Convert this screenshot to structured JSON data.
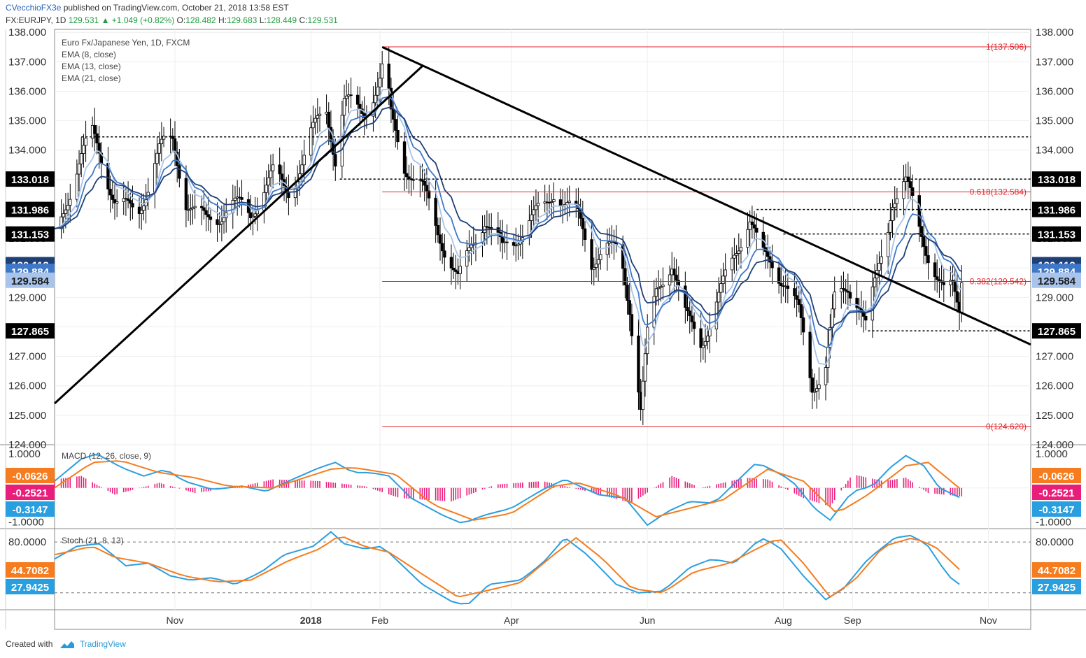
{
  "header": {
    "author": "CVecchioFX3e",
    "published_text": "published on TradingView.com, October 21, 2018 13:58 EST",
    "symbol_line": "FX:EURJPY, 1D",
    "last": "129.531",
    "change": "+1.049 (+0.82%)",
    "open_label": "O:",
    "open": "128.482",
    "high_label": "H:",
    "high": "129.683",
    "low_label": "L:",
    "low": "128.449",
    "close_label": "C:",
    "close": "129.531"
  },
  "footer": {
    "created_with": "Created with",
    "brand": "TradingView"
  },
  "colors": {
    "candle": "#000000",
    "ema8": "#a9c4ea",
    "ema13": "#3f78c7",
    "ema21": "#1f3f77",
    "trend": "#000000",
    "fib": "#e0262c",
    "macd_line": "#2a9fe0",
    "signal_line": "#f57c1f",
    "histogram": "#e91e7a",
    "stoch_k": "#2a9fe0",
    "stoch_d": "#f57c1f"
  },
  "chart_data": {
    "type": "candlestick",
    "legend": [
      {
        "text": "Euro Fx/Japanese Yen, 1D, FXCM"
      },
      {
        "text": "EMA (8, close)"
      },
      {
        "text": "EMA (13, close)"
      },
      {
        "text": "EMA (21, close)"
      }
    ],
    "y_ticks": [
      "124.000",
      "125.000",
      "126.000",
      "127.000",
      "128.000",
      "129.000",
      "130.000",
      "131.000",
      "132.000",
      "133.000",
      "134.000",
      "135.000",
      "136.000",
      "137.000",
      "138.000"
    ],
    "ylim": [
      124,
      138.1
    ],
    "x_ticks": [
      {
        "label": "Nov",
        "date": "2017-11-01",
        "bold": false
      },
      {
        "label": "2018",
        "date": "2018-01-01",
        "bold": true
      },
      {
        "label": "Feb",
        "date": "2018-02-01",
        "bold": false
      },
      {
        "label": "Apr",
        "date": "2018-04-01",
        "bold": false
      },
      {
        "label": "Jun",
        "date": "2018-06-01",
        "bold": false
      },
      {
        "label": "Aug",
        "date": "2018-08-01",
        "bold": false
      },
      {
        "label": "Sep",
        "date": "2018-09-01",
        "bold": false
      },
      {
        "label": "Nov",
        "date": "2018-11-01",
        "bold": false
      }
    ],
    "xlim": [
      "2017-09-08",
      "2018-11-20"
    ],
    "price_path": [
      [
        "2017-09-08",
        131.2
      ],
      [
        "2017-09-20",
        133.6
      ],
      [
        "2017-09-25",
        134.3
      ],
      [
        "2017-10-05",
        132.5
      ],
      [
        "2017-10-15",
        132.0
      ],
      [
        "2017-10-25",
        133.8
      ],
      [
        "2017-10-31",
        134.1
      ],
      [
        "2017-11-06",
        132.2
      ],
      [
        "2017-11-15",
        131.8
      ],
      [
        "2017-11-25",
        132.2
      ],
      [
        "2017-12-05",
        131.6
      ],
      [
        "2017-12-15",
        133.2
      ],
      [
        "2017-12-22",
        132.8
      ],
      [
        "2018-01-01",
        134.5
      ],
      [
        "2018-01-08",
        135.3
      ],
      [
        "2018-01-12",
        133.5
      ],
      [
        "2018-01-16",
        135.4
      ],
      [
        "2018-01-25",
        135.5
      ],
      [
        "2018-02-01",
        136.6
      ],
      [
        "2018-02-03",
        137.3
      ],
      [
        "2018-02-06",
        135.2
      ],
      [
        "2018-02-12",
        133.4
      ],
      [
        "2018-02-20",
        132.4
      ],
      [
        "2018-03-01",
        131.0
      ],
      [
        "2018-03-08",
        129.8
      ],
      [
        "2018-03-14",
        130.9
      ],
      [
        "2018-03-20",
        131.6
      ],
      [
        "2018-03-28",
        130.3
      ],
      [
        "2018-04-03",
        131.0
      ],
      [
        "2018-04-12",
        132.0
      ],
      [
        "2018-04-20",
        132.8
      ],
      [
        "2018-04-25",
        132.1
      ],
      [
        "2018-05-01",
        131.5
      ],
      [
        "2018-05-07",
        130.1
      ],
      [
        "2018-05-12",
        130.6
      ],
      [
        "2018-05-20",
        130.8
      ],
      [
        "2018-05-24",
        129.0
      ],
      [
        "2018-05-29",
        125.2
      ],
      [
        "2018-06-01",
        127.6
      ],
      [
        "2018-06-05",
        129.0
      ],
      [
        "2018-06-12",
        130.0
      ],
      [
        "2018-06-18",
        128.3
      ],
      [
        "2018-06-25",
        127.8
      ],
      [
        "2018-07-01",
        128.7
      ],
      [
        "2018-07-10",
        130.4
      ],
      [
        "2018-07-17",
        131.4
      ],
      [
        "2018-07-22",
        130.3
      ],
      [
        "2018-07-27",
        130.2
      ],
      [
        "2018-08-02",
        129.8
      ],
      [
        "2018-08-08",
        128.6
      ],
      [
        "2018-08-14",
        126.0
      ],
      [
        "2018-08-20",
        126.4
      ],
      [
        "2018-08-24",
        128.6
      ],
      [
        "2018-08-30",
        129.3
      ],
      [
        "2018-09-04",
        129.0
      ],
      [
        "2018-09-07",
        128.3
      ],
      [
        "2018-09-12",
        129.9
      ],
      [
        "2018-09-16",
        131.2
      ],
      [
        "2018-09-19",
        132.4
      ],
      [
        "2018-09-25",
        132.6
      ],
      [
        "2018-10-01",
        131.2
      ],
      [
        "2018-10-04",
        130.6
      ],
      [
        "2018-10-09",
        129.7
      ],
      [
        "2018-10-12",
        129.3
      ],
      [
        "2018-10-16",
        129.6
      ],
      [
        "2018-10-19",
        128.9
      ],
      [
        "2018-10-20",
        129.5
      ]
    ],
    "horizontal_levels": [
      {
        "value": 134.45,
        "style": "dashed",
        "from": "2017-09-20",
        "label": ""
      },
      {
        "value": 133.018,
        "style": "dashed",
        "from": "2018-01-14",
        "label": "133.018"
      },
      {
        "value": 131.986,
        "style": "dashed",
        "from": "2018-07-20",
        "label": "131.986"
      },
      {
        "value": 131.153,
        "style": "dashed",
        "from": "2018-08-01",
        "label": "131.153"
      },
      {
        "value": 127.865,
        "style": "dashed",
        "from": "2018-09-08",
        "label": "127.865"
      }
    ],
    "fibonacci": [
      {
        "ratio": "1",
        "value": 137.506,
        "label": "1(137.506)"
      },
      {
        "ratio": "0.618",
        "value": 132.584,
        "label": "0.618(132.584)"
      },
      {
        "ratio": "0.382",
        "value": 129.542,
        "label": "0.382(129.542)"
      },
      {
        "ratio": "0",
        "value": 124.62,
        "label": "0(124.620)"
      }
    ],
    "fib_from": "2018-02-02",
    "trendlines": [
      {
        "from": [
          "2017-09-08",
          125.4
        ],
        "to": [
          "2018-02-20",
          136.85
        ]
      },
      {
        "from": [
          "2018-02-02",
          137.5
        ],
        "to": [
          "2018-11-20",
          127.4
        ]
      }
    ],
    "price_labels": [
      {
        "value": "133.018",
        "y": 133.018,
        "bg": "#000000",
        "fg": "#ffffff",
        "both_sides": true
      },
      {
        "value": "131.986",
        "y": 131.986,
        "bg": "#000000",
        "fg": "#ffffff",
        "both_sides": true
      },
      {
        "value": "131.153",
        "y": 131.153,
        "bg": "#000000",
        "fg": "#ffffff",
        "both_sides": true
      },
      {
        "value": "130.113",
        "y": 130.113,
        "bg": "#1f3f77",
        "fg": "#ffffff",
        "both_sides": true
      },
      {
        "value": "129.884",
        "y": 129.884,
        "bg": "#3f78c7",
        "fg": "#ffffff",
        "both_sides": true
      },
      {
        "value": "129.584",
        "y": 129.584,
        "bg": "#a9c4ea",
        "fg": "#1a1a1a",
        "both_sides": true
      },
      {
        "value": "127.865",
        "y": 127.865,
        "bg": "#000000",
        "fg": "#ffffff",
        "both_sides": true
      }
    ],
    "macd": {
      "title": "MACD (12, 26, close, 9)",
      "y_ticks": [
        "1.0000",
        "-1.0000"
      ],
      "ylim": [
        -1.2,
        1.25
      ],
      "labels": [
        {
          "value": "-0.0626",
          "bg": "#f57c1f"
        },
        {
          "value": "-0.2521",
          "bg": "#e91e7a"
        },
        {
          "value": "-0.3147",
          "bg": "#2a9fe0"
        }
      ],
      "macd_path": [
        [
          "2017-09-08",
          0.2
        ],
        [
          "2017-09-20",
          0.85
        ],
        [
          "2017-09-27",
          1.0
        ],
        [
          "2017-10-08",
          0.6
        ],
        [
          "2017-10-18",
          0.35
        ],
        [
          "2017-10-28",
          0.55
        ],
        [
          "2017-11-05",
          0.2
        ],
        [
          "2017-11-18",
          -0.05
        ],
        [
          "2017-12-01",
          0.05
        ],
        [
          "2017-12-12",
          -0.1
        ],
        [
          "2017-12-22",
          0.2
        ],
        [
          "2018-01-05",
          0.6
        ],
        [
          "2018-01-12",
          0.75
        ],
        [
          "2018-01-20",
          0.45
        ],
        [
          "2018-01-28",
          0.45
        ],
        [
          "2018-02-05",
          0.35
        ],
        [
          "2018-02-15",
          -0.3
        ],
        [
          "2018-03-01",
          -0.8
        ],
        [
          "2018-03-10",
          -1.05
        ],
        [
          "2018-03-20",
          -0.8
        ],
        [
          "2018-04-01",
          -0.6
        ],
        [
          "2018-04-15",
          -0.05
        ],
        [
          "2018-04-25",
          0.25
        ],
        [
          "2018-05-10",
          -0.2
        ],
        [
          "2018-05-22",
          -0.3
        ],
        [
          "2018-06-01",
          -1.1
        ],
        [
          "2018-06-10",
          -0.7
        ],
        [
          "2018-06-20",
          -0.4
        ],
        [
          "2018-07-01",
          -0.45
        ],
        [
          "2018-07-12",
          0.25
        ],
        [
          "2018-07-20",
          0.75
        ],
        [
          "2018-07-28",
          0.5
        ],
        [
          "2018-08-05",
          0.2
        ],
        [
          "2018-08-15",
          -0.6
        ],
        [
          "2018-08-22",
          -0.95
        ],
        [
          "2018-09-01",
          -0.1
        ],
        [
          "2018-09-10",
          0.05
        ],
        [
          "2018-09-18",
          0.6
        ],
        [
          "2018-09-25",
          0.95
        ],
        [
          "2018-10-03",
          0.65
        ],
        [
          "2018-10-10",
          0.0
        ],
        [
          "2018-10-20",
          -0.31
        ]
      ],
      "signal_path": [
        [
          "2017-09-08",
          0.0
        ],
        [
          "2017-09-25",
          0.75
        ],
        [
          "2017-10-08",
          0.8
        ],
        [
          "2017-10-25",
          0.45
        ],
        [
          "2017-11-10",
          0.3
        ],
        [
          "2017-11-25",
          0.05
        ],
        [
          "2017-12-15",
          0.0
        ],
        [
          "2018-01-10",
          0.55
        ],
        [
          "2018-01-20",
          0.6
        ],
        [
          "2018-02-08",
          0.4
        ],
        [
          "2018-02-25",
          -0.5
        ],
        [
          "2018-03-15",
          -0.95
        ],
        [
          "2018-04-01",
          -0.75
        ],
        [
          "2018-04-20",
          0.05
        ],
        [
          "2018-05-01",
          0.15
        ],
        [
          "2018-05-20",
          -0.25
        ],
        [
          "2018-06-05",
          -0.85
        ],
        [
          "2018-06-20",
          -0.6
        ],
        [
          "2018-07-05",
          -0.35
        ],
        [
          "2018-07-25",
          0.55
        ],
        [
          "2018-08-10",
          0.2
        ],
        [
          "2018-08-25",
          -0.75
        ],
        [
          "2018-09-08",
          -0.2
        ],
        [
          "2018-09-25",
          0.65
        ],
        [
          "2018-10-05",
          0.75
        ],
        [
          "2018-10-20",
          -0.06
        ]
      ],
      "histogram_path": [
        [
          "2017-09-08",
          0.25
        ],
        [
          "2017-09-20",
          0.35
        ],
        [
          "2017-10-05",
          -0.2
        ],
        [
          "2017-10-25",
          0.15
        ],
        [
          "2017-11-10",
          -0.15
        ],
        [
          "2017-12-01",
          0.05
        ],
        [
          "2017-12-15",
          0.25
        ],
        [
          "2018-01-05",
          0.2
        ],
        [
          "2018-01-25",
          0.05
        ],
        [
          "2018-02-10",
          -0.3
        ],
        [
          "2018-03-05",
          -0.4
        ],
        [
          "2018-03-25",
          0.1
        ],
        [
          "2018-04-15",
          0.2
        ],
        [
          "2018-05-05",
          -0.1
        ],
        [
          "2018-05-25",
          -0.45
        ],
        [
          "2018-06-12",
          0.35
        ],
        [
          "2018-06-25",
          0.0
        ],
        [
          "2018-07-15",
          0.3
        ],
        [
          "2018-07-25",
          0.25
        ],
        [
          "2018-08-10",
          -0.3
        ],
        [
          "2018-08-22",
          -0.55
        ],
        [
          "2018-09-01",
          0.4
        ],
        [
          "2018-09-15",
          0.2
        ],
        [
          "2018-09-25",
          0.3
        ],
        [
          "2018-10-05",
          -0.15
        ],
        [
          "2018-10-20",
          -0.25
        ]
      ]
    },
    "stoch": {
      "title": "Stoch (21, 8, 13)",
      "y_ticks": [
        "80.0000"
      ],
      "ylim": [
        0,
        95
      ],
      "levels": [
        80,
        20
      ],
      "labels": [
        {
          "value": "44.7082",
          "bg": "#f57c1f"
        },
        {
          "value": "27.9425",
          "bg": "#2a9fe0"
        }
      ],
      "k_path": [
        [
          "2017-09-08",
          60
        ],
        [
          "2017-09-18",
          75
        ],
        [
          "2017-09-28",
          78
        ],
        [
          "2017-10-10",
          52
        ],
        [
          "2017-10-20",
          55
        ],
        [
          "2017-10-30",
          40
        ],
        [
          "2017-11-08",
          35
        ],
        [
          "2017-11-18",
          38
        ],
        [
          "2017-11-28",
          30
        ],
        [
          "2017-12-10",
          45
        ],
        [
          "2017-12-20",
          65
        ],
        [
          "2018-01-02",
          75
        ],
        [
          "2018-01-10",
          92
        ],
        [
          "2018-01-16",
          78
        ],
        [
          "2018-01-25",
          72
        ],
        [
          "2018-02-02",
          75
        ],
        [
          "2018-02-10",
          55
        ],
        [
          "2018-02-20",
          30
        ],
        [
          "2018-03-05",
          10
        ],
        [
          "2018-03-12",
          5
        ],
        [
          "2018-03-22",
          30
        ],
        [
          "2018-04-05",
          35
        ],
        [
          "2018-04-15",
          55
        ],
        [
          "2018-04-25",
          85
        ],
        [
          "2018-05-05",
          65
        ],
        [
          "2018-05-18",
          30
        ],
        [
          "2018-05-28",
          20
        ],
        [
          "2018-06-08",
          22
        ],
        [
          "2018-06-20",
          50
        ],
        [
          "2018-06-30",
          60
        ],
        [
          "2018-07-10",
          55
        ],
        [
          "2018-07-22",
          85
        ],
        [
          "2018-07-30",
          75
        ],
        [
          "2018-08-10",
          40
        ],
        [
          "2018-08-20",
          12
        ],
        [
          "2018-08-28",
          25
        ],
        [
          "2018-09-08",
          60
        ],
        [
          "2018-09-20",
          85
        ],
        [
          "2018-09-28",
          88
        ],
        [
          "2018-10-05",
          75
        ],
        [
          "2018-10-14",
          40
        ],
        [
          "2018-10-20",
          28
        ]
      ],
      "d_path": [
        [
          "2017-09-08",
          65
        ],
        [
          "2017-09-25",
          75
        ],
        [
          "2017-10-05",
          62
        ],
        [
          "2017-10-20",
          55
        ],
        [
          "2017-11-05",
          40
        ],
        [
          "2017-11-20",
          33
        ],
        [
          "2017-12-05",
          35
        ],
        [
          "2017-12-22",
          58
        ],
        [
          "2018-01-05",
          72
        ],
        [
          "2018-01-14",
          88
        ],
        [
          "2018-01-25",
          75
        ],
        [
          "2018-02-05",
          68
        ],
        [
          "2018-02-20",
          42
        ],
        [
          "2018-03-08",
          15
        ],
        [
          "2018-03-20",
          22
        ],
        [
          "2018-04-05",
          32
        ],
        [
          "2018-04-20",
          65
        ],
        [
          "2018-04-30",
          85
        ],
        [
          "2018-05-12",
          60
        ],
        [
          "2018-05-25",
          25
        ],
        [
          "2018-06-08",
          20
        ],
        [
          "2018-06-22",
          45
        ],
        [
          "2018-07-08",
          55
        ],
        [
          "2018-07-20",
          72
        ],
        [
          "2018-07-30",
          85
        ],
        [
          "2018-08-10",
          55
        ],
        [
          "2018-08-22",
          15
        ],
        [
          "2018-09-02",
          35
        ],
        [
          "2018-09-15",
          75
        ],
        [
          "2018-09-28",
          85
        ],
        [
          "2018-10-08",
          75
        ],
        [
          "2018-10-20",
          45
        ]
      ]
    }
  }
}
